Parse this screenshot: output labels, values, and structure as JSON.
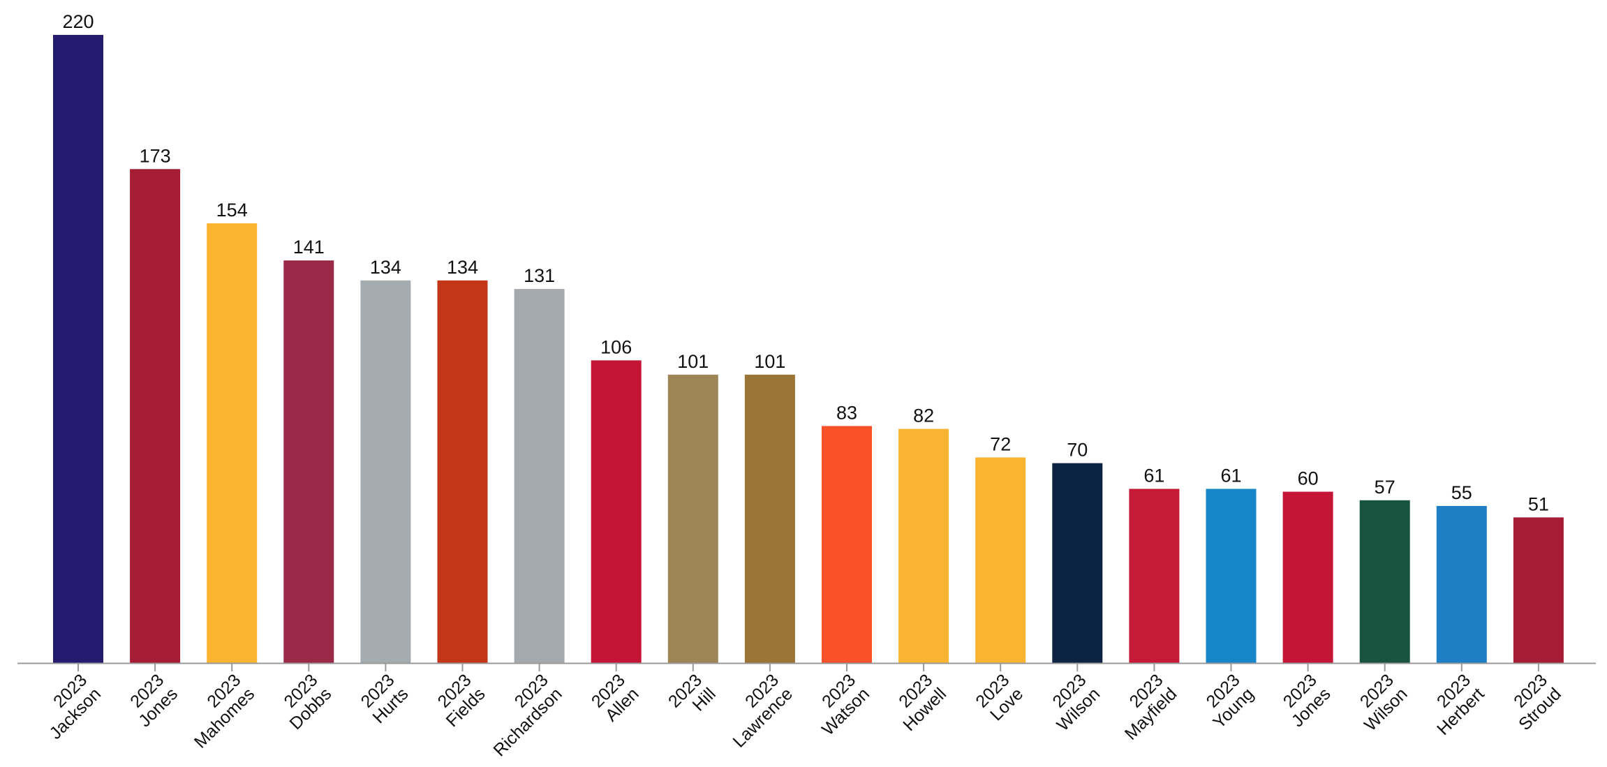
{
  "chart_data": {
    "type": "bar",
    "title": "",
    "xlabel": "",
    "ylabel": "",
    "ylim": [
      0,
      230
    ],
    "grid": false,
    "legend": "none",
    "data_labels": true,
    "categories": [
      {
        "year": "2023",
        "name": "Jackson"
      },
      {
        "year": "2023",
        "name": "Jones"
      },
      {
        "year": "2023",
        "name": "Mahomes"
      },
      {
        "year": "2023",
        "name": "Dobbs"
      },
      {
        "year": "2023",
        "name": "Hurts"
      },
      {
        "year": "2023",
        "name": "Fields"
      },
      {
        "year": "2023",
        "name": "Richardson"
      },
      {
        "year": "2023",
        "name": "Allen"
      },
      {
        "year": "2023",
        "name": "Hill"
      },
      {
        "year": "2023",
        "name": "Lawrence"
      },
      {
        "year": "2023",
        "name": "Watson"
      },
      {
        "year": "2023",
        "name": "Howell"
      },
      {
        "year": "2023",
        "name": "Love"
      },
      {
        "year": "2023",
        "name": "Wilson"
      },
      {
        "year": "2023",
        "name": "Mayfield"
      },
      {
        "year": "2023",
        "name": "Young"
      },
      {
        "year": "2023",
        "name": "Jones"
      },
      {
        "year": "2023",
        "name": "Wilson"
      },
      {
        "year": "2023",
        "name": "Herbert"
      },
      {
        "year": "2023",
        "name": "Stroud"
      }
    ],
    "values": [
      220,
      173,
      154,
      141,
      134,
      134,
      131,
      106,
      101,
      101,
      83,
      82,
      72,
      70,
      61,
      61,
      60,
      57,
      55,
      51
    ],
    "colors": [
      "#241A6E",
      "#A51C35",
      "#FBB430",
      "#9A2847",
      "#A5ACAF",
      "#C33718",
      "#A4A9AD",
      "#C41537",
      "#9E8557",
      "#9B7535",
      "#F9512A",
      "#FBB431",
      "#FBB430",
      "#0D2342",
      "#C51B38",
      "#1686C8",
      "#C41537",
      "#18533F",
      "#1F7FC4",
      "#A61C35"
    ]
  }
}
